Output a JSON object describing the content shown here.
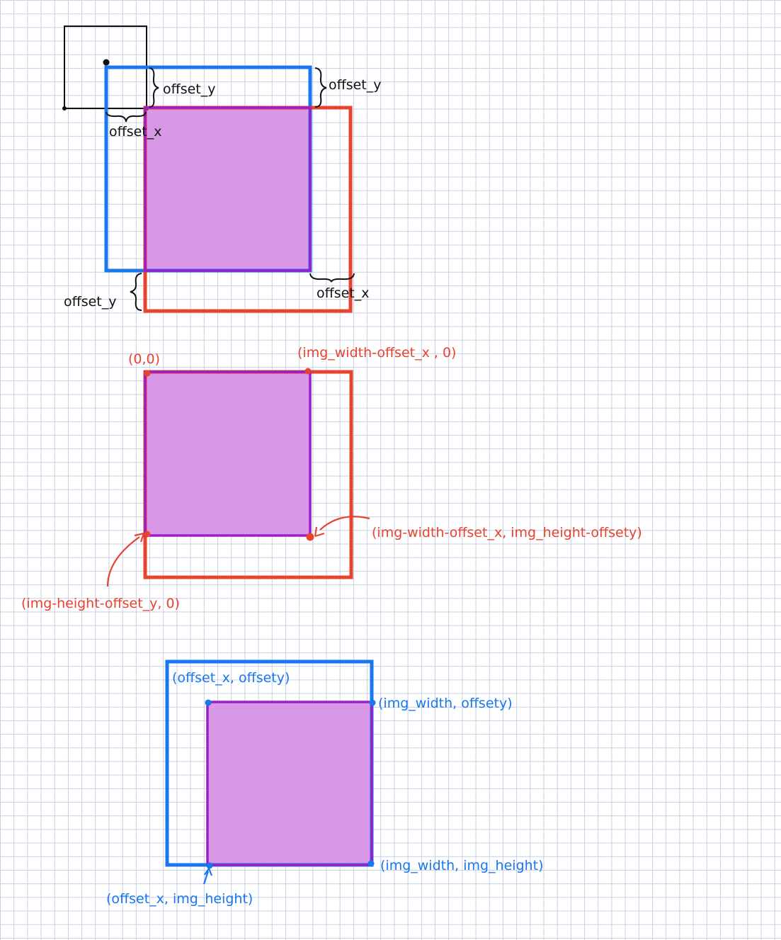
{
  "colors": {
    "black": "#111111",
    "red": "#e8432f",
    "blue": "#1877ef",
    "purple": "#9b1dcc",
    "overlap_fill": "#d898e6",
    "grid": "#c7cfe6"
  },
  "labels": {
    "top_offset_y_inner": "offset_y",
    "top_offset_y_outer": "offset_y",
    "top_offset_x_left": "offset_x",
    "top_offset_y_bottom": "offset_y",
    "top_offset_x_right": "offset_x",
    "mid_origin": "(0,0)",
    "mid_top_right": "(img_width-offset_x , 0)",
    "mid_bottom_right": "(img-width-offset_x, img_height-offsety)",
    "mid_bottom_left": "(img-height-offset_y, 0)",
    "bot_top_left": "(offset_x, offsety)",
    "bot_top_right": "(img_width, offsety)",
    "bot_bottom_right": "(img_width, img_height)",
    "bot_bottom_left": "(offset_x, img_height)"
  }
}
